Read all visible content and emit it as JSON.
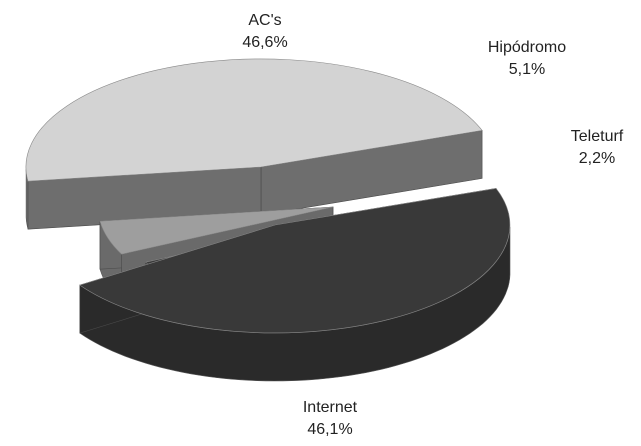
{
  "chart_data": {
    "type": "pie",
    "style": "3d-exploded",
    "slices": [
      {
        "label": "AC's",
        "value": 46.6,
        "value_text": "46,6%",
        "top": "#d3d3d3",
        "side": "#6e6e6e"
      },
      {
        "label": "Hipódromo",
        "value": 5.1,
        "value_text": "5,1%",
        "top": "#9e9e9e",
        "side": "#6a6a6a"
      },
      {
        "label": "Teleturf",
        "value": 2.2,
        "value_text": "2,2%",
        "top": "#3a3a3a",
        "side": "#2c2c2c"
      },
      {
        "label": "Internet",
        "value": 46.1,
        "value_text": "46,1%",
        "top": "#393939",
        "side": "#2a2a2a"
      }
    ]
  }
}
